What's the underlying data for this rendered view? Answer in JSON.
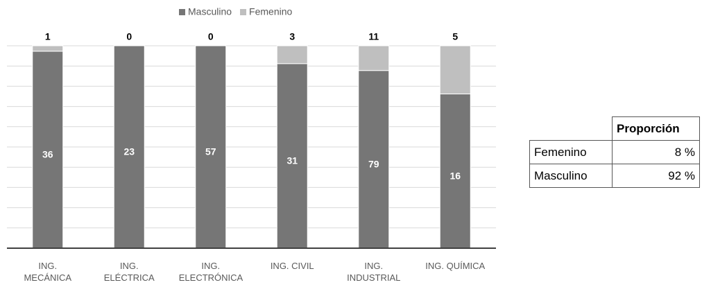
{
  "chart_data": {
    "type": "stacked_percent_bar",
    "categories": [
      "ING. MECÁNICA",
      "ING. ELÉCTRICA",
      "ING. ELECTRÓNICA",
      "ING. CIVIL",
      "ING. INDUSTRIAL",
      "ING. QUÍMICA"
    ],
    "series": [
      {
        "name": "Masculino",
        "color": "#767676",
        "values": [
          36,
          23,
          57,
          31,
          79,
          16
        ]
      },
      {
        "name": "Femenino",
        "color": "#bfbfbf",
        "values": [
          1,
          0,
          0,
          3,
          11,
          5
        ]
      }
    ],
    "grid": true,
    "legend": "top"
  },
  "table": {
    "header": "Proporción",
    "rows": [
      [
        "Femenino",
        "8 %"
      ],
      [
        "Masculino",
        "92 %"
      ]
    ]
  }
}
